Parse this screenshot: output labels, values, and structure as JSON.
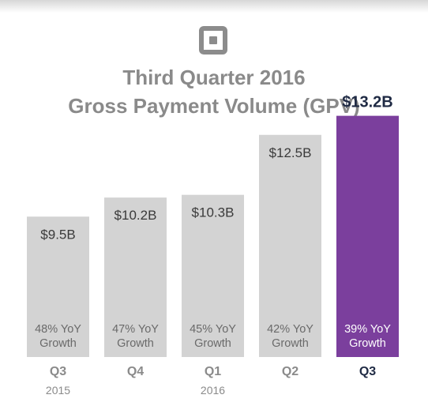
{
  "header": {
    "title_line1": "Third Quarter 2016",
    "title_line2": "Gross Payment Volume (GPV)",
    "logo_icon": "square-logo-icon"
  },
  "chart_data": {
    "type": "bar",
    "title": "Third Quarter 2016 Gross Payment Volume (GPV)",
    "xlabel": "",
    "ylabel": "",
    "unit": "$B",
    "categories": [
      "Q3",
      "Q4",
      "Q1",
      "Q2",
      "Q3"
    ],
    "year_labels": [
      "2015",
      "",
      "2016",
      "",
      ""
    ],
    "values": [
      9.5,
      10.2,
      10.3,
      12.5,
      13.2
    ],
    "value_labels": [
      "$9.5B",
      "$10.2B",
      "$10.3B",
      "$12.5B",
      "$13.2B"
    ],
    "growth_labels": [
      [
        "48% YoY",
        "Growth"
      ],
      [
        "47% YoY",
        "Growth"
      ],
      [
        "45% YoY",
        "Growth"
      ],
      [
        "42% YoY",
        "Growth"
      ],
      [
        "39% YoY",
        "Growth"
      ]
    ],
    "highlight_index": 4,
    "grid": false,
    "colors": {
      "bar": "#d3d3d3",
      "highlight": "#7b3f9d",
      "label_text": "#3a3a3a",
      "growth_text": "#6a6a6a",
      "highlight_text": "#ffffff",
      "emphasis_text": "#1f2a44",
      "axis_text": "#8a8a8a",
      "title_text": "#8a8a8a"
    }
  }
}
